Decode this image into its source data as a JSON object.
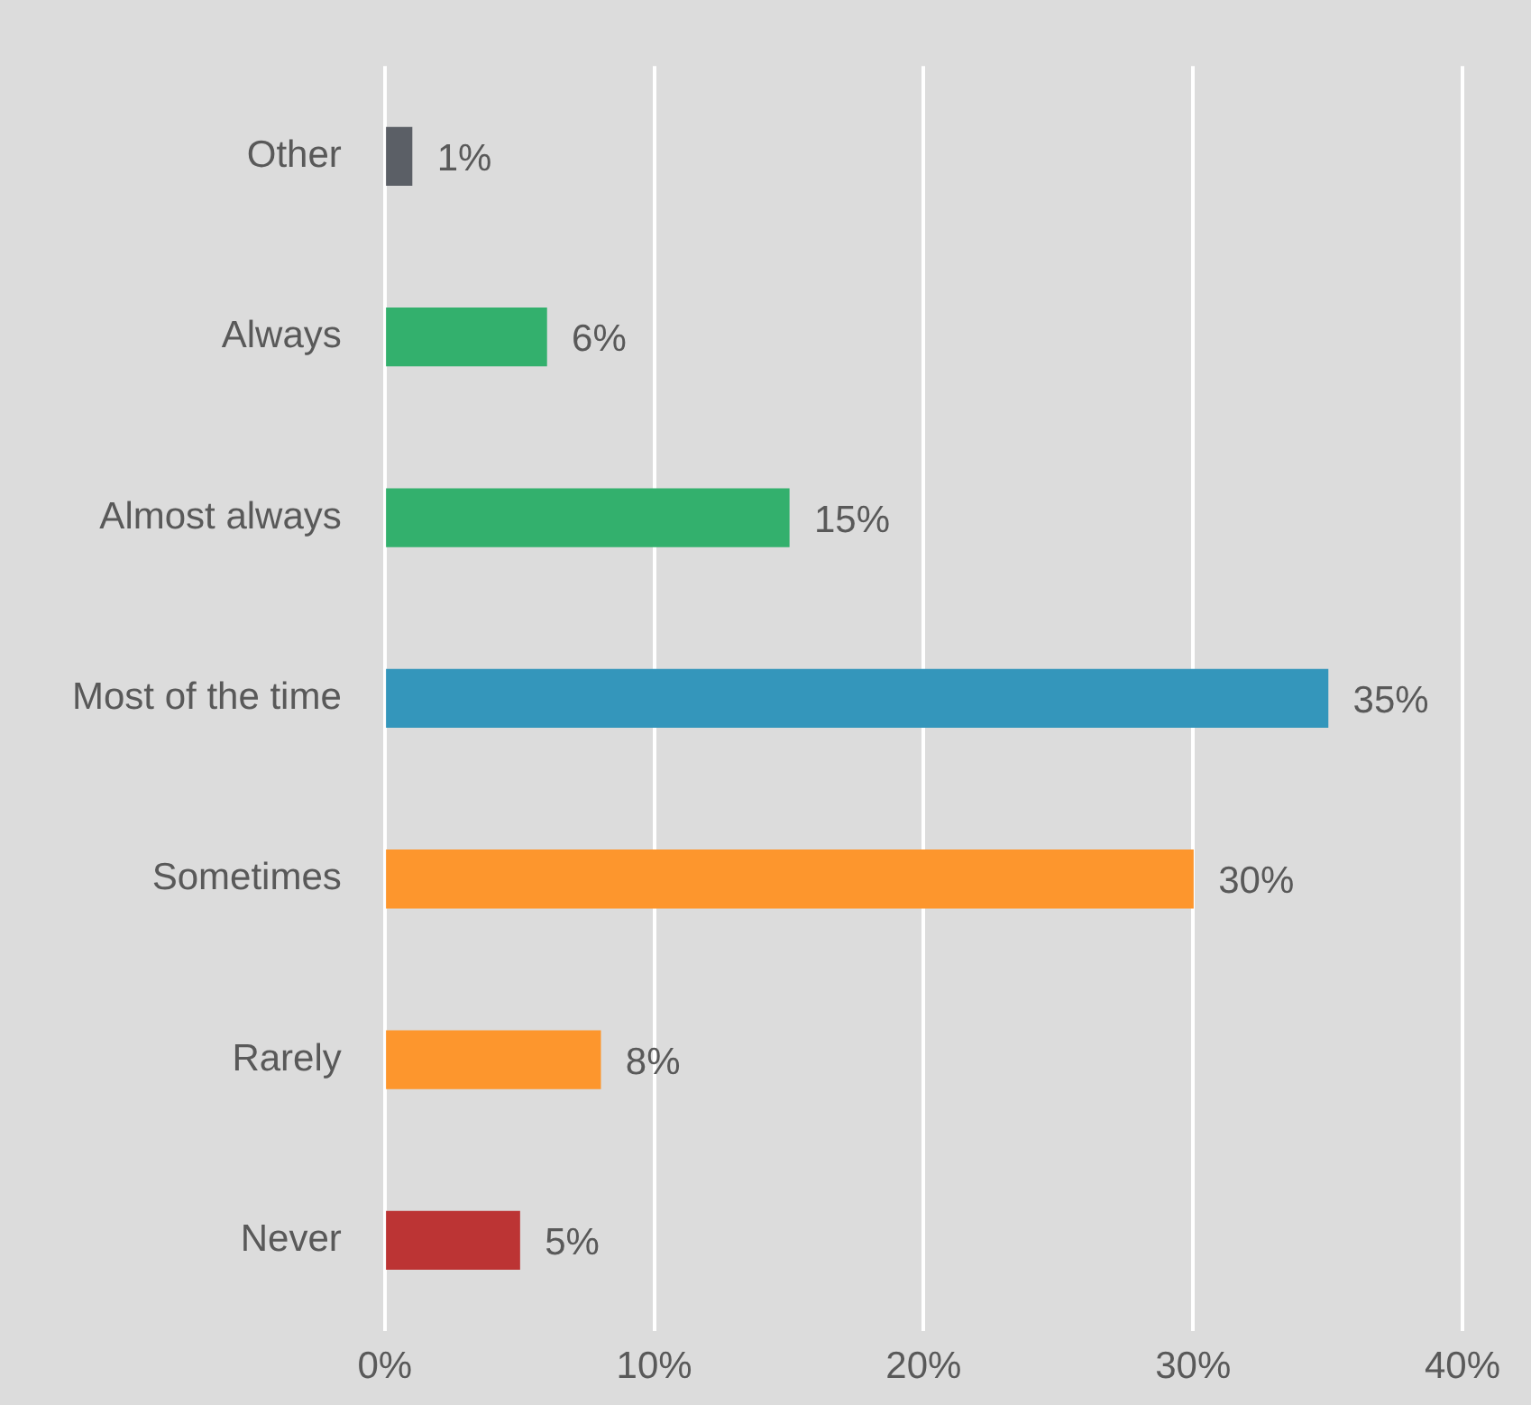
{
  "chart_data": {
    "type": "bar",
    "orientation": "horizontal",
    "categories": [
      "Other",
      "Always",
      "Almost always",
      "Most of the time",
      "Sometimes",
      "Rarely",
      "Never"
    ],
    "values": [
      1,
      6,
      15,
      35,
      30,
      8,
      5
    ],
    "colors": [
      "#5b5f66",
      "#33b06d",
      "#33b06d",
      "#3496bb",
      "#fd962d",
      "#fd962d",
      "#bc3434"
    ],
    "xlim": [
      0,
      40
    ],
    "xticks": [
      {
        "value": 0,
        "label": "0%"
      },
      {
        "value": 10,
        "label": "10%"
      },
      {
        "value": 20,
        "label": "20%"
      },
      {
        "value": 30,
        "label": "30%"
      },
      {
        "value": 40,
        "label": "40%"
      }
    ],
    "value_labels": [
      "1%",
      "6%",
      "15%",
      "35%",
      "30%",
      "8%",
      "5%"
    ],
    "grid": "x",
    "legend": false
  }
}
